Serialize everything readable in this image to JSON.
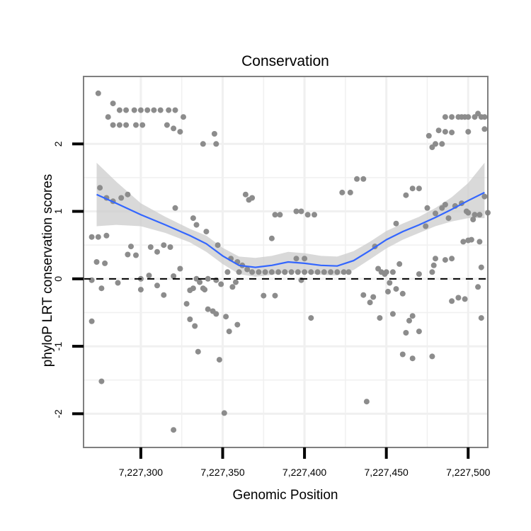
{
  "chart_data": {
    "type": "scatter",
    "title": "Conservation",
    "xlabel": "Genomic Position",
    "ylabel": "phyloP LRT conservation scores",
    "xlim": [
      7227265,
      7227512
    ],
    "ylim": [
      -2.5,
      3.0
    ],
    "x_ticks": [
      7227300,
      7227350,
      7227400,
      7227450,
      7227500
    ],
    "x_tick_labels": [
      "7,227,300",
      "7,227,350",
      "7,227,400",
      "7,227,450",
      "7,227,500"
    ],
    "y_ticks": [
      -2,
      -1,
      0,
      1,
      2
    ],
    "y_tick_labels": [
      "-2",
      "-1",
      "0",
      "1",
      "2"
    ],
    "reference_line": {
      "y": 0,
      "style": "dashed"
    },
    "colors": {
      "points": "#8c8c8c",
      "smooth": "#3366ff",
      "ribbon": "#cccccc",
      "border": "#7f7f7f",
      "grid": "#f0f0f0"
    },
    "points": [
      [
        7227274,
        2.75
      ],
      [
        7227280,
        2.4
      ],
      [
        7227283,
        2.6
      ],
      [
        7227287,
        2.5
      ],
      [
        7227291,
        2.5
      ],
      [
        7227296,
        2.5
      ],
      [
        7227300,
        2.5
      ],
      [
        7227304,
        2.5
      ],
      [
        7227308,
        2.5
      ],
      [
        7227312,
        2.5
      ],
      [
        7227317,
        2.5
      ],
      [
        7227321,
        2.5
      ],
      [
        7227283,
        2.28
      ],
      [
        7227287,
        2.28
      ],
      [
        7227291,
        2.28
      ],
      [
        7227297,
        2.28
      ],
      [
        7227301,
        2.28
      ],
      [
        7227316,
        2.28
      ],
      [
        7227320,
        2.23
      ],
      [
        7227324,
        2.18
      ],
      [
        7227326,
        2.4
      ],
      [
        7227338,
        2.0
      ],
      [
        7227345,
        2.15
      ],
      [
        7227346,
        2.0
      ],
      [
        7227275,
        1.35
      ],
      [
        7227279,
        1.2
      ],
      [
        7227283,
        1.15
      ],
      [
        7227288,
        1.2
      ],
      [
        7227292,
        1.25
      ],
      [
        7227321,
        1.05
      ],
      [
        7227332,
        0.9
      ],
      [
        7227334,
        0.8
      ],
      [
        7227340,
        0.7
      ],
      [
        7227364,
        1.25
      ],
      [
        7227366,
        1.17
      ],
      [
        7227368,
        1.2
      ],
      [
        7227382,
        0.95
      ],
      [
        7227385,
        0.95
      ],
      [
        7227395,
        1.0
      ],
      [
        7227398,
        1.0
      ],
      [
        7227402,
        0.95
      ],
      [
        7227406,
        0.95
      ],
      [
        7227423,
        1.28
      ],
      [
        7227428,
        1.28
      ],
      [
        7227432,
        1.48
      ],
      [
        7227436,
        1.48
      ],
      [
        7227270,
        0.62
      ],
      [
        7227274,
        0.62
      ],
      [
        7227279,
        0.64
      ],
      [
        7227273,
        0.25
      ],
      [
        7227278,
        0.23
      ],
      [
        7227292,
        0.36
      ],
      [
        7227294,
        0.48
      ],
      [
        7227297,
        0.35
      ],
      [
        7227306,
        0.47
      ],
      [
        7227310,
        0.4
      ],
      [
        7227314,
        0.5
      ],
      [
        7227318,
        0.47
      ],
      [
        7227347,
        0.5
      ],
      [
        7227355,
        0.3
      ],
      [
        7227359,
        0.25
      ],
      [
        7227362,
        0.2
      ],
      [
        7227365,
        0.14
      ],
      [
        7227368,
        0.1
      ],
      [
        7227372,
        0.1
      ],
      [
        7227376,
        0.1
      ],
      [
        7227380,
        0.1
      ],
      [
        7227384,
        0.1
      ],
      [
        7227388,
        0.1
      ],
      [
        7227392,
        0.1
      ],
      [
        7227396,
        0.1
      ],
      [
        7227400,
        0.1
      ],
      [
        7227404,
        0.1
      ],
      [
        7227408,
        0.1
      ],
      [
        7227412,
        0.1
      ],
      [
        7227416,
        0.1
      ],
      [
        7227420,
        0.1
      ],
      [
        7227424,
        0.1
      ],
      [
        7227427,
        0.1
      ],
      [
        7227380,
        0.6
      ],
      [
        7227388,
        0.1
      ],
      [
        7227395,
        0.3
      ],
      [
        7227400,
        0.3
      ],
      [
        7227270,
        -0.02
      ],
      [
        7227276,
        -0.14
      ],
      [
        7227286,
        -0.06
      ],
      [
        7227300,
        -0.16
      ],
      [
        7227305,
        0.05
      ],
      [
        7227310,
        -0.1
      ],
      [
        7227314,
        -0.24
      ],
      [
        7227320,
        0.04
      ],
      [
        7227324,
        0.15
      ],
      [
        7227328,
        -0.37
      ],
      [
        7227330,
        -0.6
      ],
      [
        7227332,
        -0.14
      ],
      [
        7227336,
        -0.05
      ],
      [
        7227338,
        -0.14
      ],
      [
        7227339,
        -0.16
      ],
      [
        7227344,
        -0.48
      ],
      [
        7227346,
        -0.02
      ],
      [
        7227349,
        -0.08
      ],
      [
        7227353,
        0.1
      ],
      [
        7227356,
        -0.12
      ],
      [
        7227358,
        -0.05
      ],
      [
        7227330,
        -0.17
      ],
      [
        7227300,
        0.0
      ],
      [
        7227334,
        0.0
      ],
      [
        7227341,
        0.0
      ],
      [
        7227360,
        0.1
      ],
      [
        7227270,
        -0.63
      ],
      [
        7227276,
        -1.52
      ],
      [
        7227333,
        -0.7
      ],
      [
        7227335,
        -1.08
      ],
      [
        7227341,
        -0.45
      ],
      [
        7227346,
        -0.52
      ],
      [
        7227348,
        -1.2
      ],
      [
        7227352,
        -0.56
      ],
      [
        7227354,
        -0.78
      ],
      [
        7227359,
        -0.68
      ],
      [
        7227375,
        -0.25
      ],
      [
        7227382,
        -0.25
      ],
      [
        7227398,
        -0.02
      ],
      [
        7227404,
        -0.58
      ],
      [
        7227320,
        -2.24
      ],
      [
        7227351,
        -1.99
      ],
      [
        7227436,
        -0.24
      ],
      [
        7227440,
        -0.35
      ],
      [
        7227442,
        -0.27
      ],
      [
        7227446,
        -0.58
      ],
      [
        7227452,
        -0.06
      ],
      [
        7227443,
        0.48
      ],
      [
        7227445,
        0.15
      ],
      [
        7227447,
        0.1
      ],
      [
        7227449,
        0.07
      ],
      [
        7227450,
        0.1
      ],
      [
        7227451,
        -0.19
      ],
      [
        7227454,
        -0.52
      ],
      [
        7227456,
        -0.15
      ],
      [
        7227460,
        -0.22
      ],
      [
        7227462,
        -0.8
      ],
      [
        7227464,
        -0.62
      ],
      [
        7227466,
        -0.55
      ],
      [
        7227470,
        -0.78
      ],
      [
        7227460,
        -1.12
      ],
      [
        7227466,
        -1.18
      ],
      [
        7227478,
        -1.15
      ],
      [
        7227438,
        -1.82
      ],
      [
        7227454,
        0.1
      ],
      [
        7227458,
        0.22
      ],
      [
        7227470,
        0.07
      ],
      [
        7227478,
        0.1
      ],
      [
        7227479,
        0.2
      ],
      [
        7227456,
        0.82
      ],
      [
        7227462,
        1.24
      ],
      [
        7227466,
        1.34
      ],
      [
        7227470,
        1.34
      ],
      [
        7227474,
        0.78
      ],
      [
        7227475,
        1.05
      ],
      [
        7227480,
        0.97
      ],
      [
        7227484,
        1.05
      ],
      [
        7227486,
        1.1
      ],
      [
        7227488,
        0.9
      ],
      [
        7227492,
        1.08
      ],
      [
        7227496,
        1.12
      ],
      [
        7227499,
        1.0
      ],
      [
        7227503,
        0.88
      ],
      [
        7227507,
        0.95
      ],
      [
        7227510,
        1.22
      ],
      [
        7227512,
        0.98
      ],
      [
        7227480,
        0.3
      ],
      [
        7227486,
        0.28
      ],
      [
        7227490,
        0.3
      ],
      [
        7227500,
        0.98
      ],
      [
        7227504,
        0.95
      ],
      [
        7227497,
        0.55
      ],
      [
        7227500,
        0.57
      ],
      [
        7227502,
        0.58
      ],
      [
        7227507,
        0.55
      ],
      [
        7227490,
        -0.33
      ],
      [
        7227494,
        -0.28
      ],
      [
        7227498,
        -0.3
      ],
      [
        7227506,
        -0.12
      ],
      [
        7227508,
        0.17
      ],
      [
        7227508,
        -0.58
      ],
      [
        7227476,
        2.12
      ],
      [
        7227478,
        1.95
      ],
      [
        7227480,
        2.0
      ],
      [
        7227484,
        2.0
      ],
      [
        7227486,
        2.4
      ],
      [
        7227490,
        2.4
      ],
      [
        7227494,
        2.4
      ],
      [
        7227498,
        2.4
      ],
      [
        7227482,
        2.2
      ],
      [
        7227486,
        2.18
      ],
      [
        7227490,
        2.17
      ],
      [
        7227496,
        2.4
      ],
      [
        7227500,
        2.4
      ],
      [
        7227504,
        2.4
      ],
      [
        7227508,
        2.4
      ],
      [
        7227510,
        2.4
      ],
      [
        7227500,
        2.18
      ],
      [
        7227506,
        2.45
      ],
      [
        7227510,
        2.22
      ]
    ],
    "smooth": {
      "x": [
        7227273,
        7227285,
        7227300,
        7227315,
        7227330,
        7227340,
        7227350,
        7227360,
        7227370,
        7227380,
        7227390,
        7227400,
        7227410,
        7227420,
        7227430,
        7227440,
        7227450,
        7227460,
        7227470,
        7227480,
        7227490,
        7227500,
        7227510
      ],
      "y": [
        1.25,
        1.12,
        0.95,
        0.8,
        0.64,
        0.52,
        0.34,
        0.2,
        0.17,
        0.2,
        0.25,
        0.23,
        0.2,
        0.19,
        0.27,
        0.42,
        0.58,
        0.7,
        0.8,
        0.91,
        1.03,
        1.16,
        1.28
      ],
      "lower": [
        0.78,
        0.8,
        0.78,
        0.68,
        0.54,
        0.4,
        0.22,
        0.07,
        0.03,
        0.06,
        0.1,
        0.09,
        0.06,
        0.05,
        0.13,
        0.29,
        0.45,
        0.58,
        0.68,
        0.78,
        0.85,
        0.9,
        0.9
      ],
      "upper": [
        1.72,
        1.44,
        1.12,
        0.92,
        0.74,
        0.64,
        0.46,
        0.33,
        0.31,
        0.34,
        0.4,
        0.38,
        0.34,
        0.33,
        0.41,
        0.55,
        0.71,
        0.82,
        0.92,
        1.05,
        1.21,
        1.42,
        1.72
      ]
    }
  }
}
